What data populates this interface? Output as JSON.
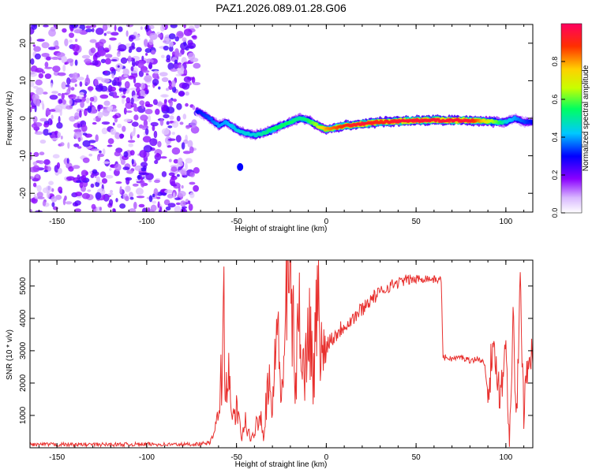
{
  "title": "PAZ1.2026.089.01.28.G06",
  "colors": {
    "snr_line": "#e8302e",
    "axis": "#000000"
  },
  "chart_data": [
    {
      "type": "heatmap",
      "xlabel": "Height of straight line (km)",
      "ylabel": "Frequency (Hz)",
      "xlim": [
        -165,
        115
      ],
      "ylim": [
        -25,
        25
      ],
      "xticks": [
        -150,
        -100,
        -50,
        0,
        50,
        100
      ],
      "yticks": [
        -20,
        -10,
        0,
        10,
        20
      ],
      "grid": false,
      "colorbar": {
        "label": "Normalized spectral amplitude",
        "range": [
          0,
          1
        ],
        "ticks": [
          "0.0",
          "0.2",
          "0.4",
          "0.6",
          "0.8"
        ],
        "colors": [
          "#ffffff",
          "#8a00ff",
          "#0000ff",
          "#00c8ff",
          "#00ff60",
          "#c8ff00",
          "#ffd000",
          "#ff3000",
          "#ff0060"
        ]
      },
      "noise_region": {
        "x_range": [
          -165,
          -72
        ],
        "y_range": [
          -25,
          25
        ],
        "amplitude": 0.2
      },
      "ridge": {
        "x": [
          -72,
          -65,
          -60,
          -56,
          -50,
          -45,
          -40,
          -35,
          -30,
          -25,
          -20,
          -15,
          -10,
          -5,
          0,
          5,
          10,
          20,
          30,
          40,
          50,
          60,
          70,
          80,
          90,
          95,
          100,
          105,
          110,
          115
        ],
        "frequency": [
          2,
          0,
          -2,
          -1,
          -3,
          -4,
          -4.5,
          -4,
          -3,
          -2,
          -1,
          0,
          -0.5,
          -2,
          -3,
          -2.5,
          -2,
          -1.5,
          -1,
          -0.8,
          -0.6,
          -0.5,
          -0.6,
          -0.6,
          -0.8,
          -1,
          -1,
          0,
          -1,
          -1
        ],
        "amplitude": [
          0.3,
          0.35,
          0.4,
          0.4,
          0.45,
          0.45,
          0.45,
          0.5,
          0.55,
          0.55,
          0.55,
          0.5,
          0.55,
          0.65,
          0.8,
          0.85,
          0.9,
          0.95,
          0.9,
          0.95,
          0.95,
          0.95,
          0.95,
          0.95,
          0.7,
          0.6,
          0.45,
          0.4,
          0.35,
          0.3
        ]
      },
      "blob": {
        "x": -48,
        "frequency": -13,
        "amplitude": 0.3
      }
    },
    {
      "type": "line",
      "xlabel": "Height of straight line (km)",
      "ylabel": "SNR (10 * v/v)",
      "xlim": [
        -165,
        115
      ],
      "ylim": [
        0,
        5800
      ],
      "xticks": [
        -150,
        -100,
        -50,
        0,
        50,
        100
      ],
      "yticks": [
        1000,
        2000,
        3000,
        4000,
        5000
      ],
      "grid": false,
      "series": [
        {
          "x": [
            -165,
            -150,
            -120,
            -100,
            -80,
            -70,
            -65,
            -62,
            -60,
            -58,
            -57,
            -56,
            -55,
            -53,
            -50,
            -47,
            -45,
            -42,
            -40,
            -37,
            -35,
            -32,
            -30,
            -28,
            -25,
            -22,
            -20,
            -17,
            -15,
            -12,
            -10,
            -7,
            -5,
            -2,
            0,
            5,
            10,
            15,
            20,
            25,
            30,
            35,
            40,
            45,
            50,
            55,
            60,
            64,
            65,
            66,
            70,
            75,
            80,
            85,
            88,
            90,
            92,
            95,
            97,
            100,
            102,
            104,
            106,
            108,
            110,
            113,
            115
          ],
          "y": [
            100,
            100,
            100,
            110,
            100,
            120,
            150,
            500,
            1000,
            2600,
            4200,
            1500,
            2800,
            900,
            1200,
            300,
            800,
            200,
            500,
            1200,
            300,
            2500,
            800,
            4200,
            1500,
            4500,
            5600,
            1800,
            4500,
            2000,
            4200,
            2200,
            4600,
            2600,
            3200,
            3500,
            3800,
            4000,
            4300,
            4600,
            4800,
            5000,
            5100,
            5200,
            5200,
            5250,
            5200,
            5200,
            2800,
            2800,
            2750,
            2800,
            2700,
            2750,
            2600,
            1800,
            2700,
            2600,
            1500,
            3400,
            200,
            4000,
            800,
            5000,
            1200,
            3200,
            2600
          ]
        }
      ]
    }
  ]
}
